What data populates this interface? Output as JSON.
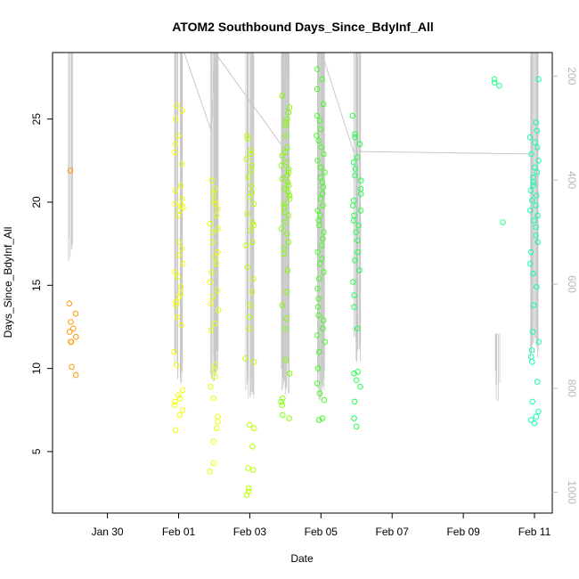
{
  "chart_data": {
    "type": "scatter",
    "title": "ATOM2 Southbound Days_Since_BdyInf_All",
    "xlabel": "Date",
    "ylabel": "Days_Since_BdyInf_All",
    "xlim": [
      "2015-01-28T11:00",
      "2015-02-11T12:00"
    ],
    "ylim": [
      1.3,
      29.0
    ],
    "y2lim": [
      1040,
      155
    ],
    "x_tick_labels": [
      {
        "date": "2015-01-30",
        "label": "Jan 30"
      },
      {
        "date": "2015-02-01",
        "label": "Feb 01"
      },
      {
        "date": "2015-02-03",
        "label": "Feb 03"
      },
      {
        "date": "2015-02-05",
        "label": "Feb 05"
      },
      {
        "date": "2015-02-07",
        "label": "Feb 07"
      },
      {
        "date": "2015-02-09",
        "label": "Feb 09"
      },
      {
        "date": "2015-02-11",
        "label": "Feb 11"
      }
    ],
    "y_ticks": [
      5,
      10,
      15,
      20,
      25
    ],
    "y2_ticks": [
      200,
      400,
      600,
      800,
      1000
    ],
    "grid": false,
    "legend": "none",
    "secondary_axis_color": "#b8b8b8",
    "line_color": "#c8c8c8",
    "clusters": [
      {
        "date": "2015-01-29T00:00",
        "color": "#ff9900",
        "values": [
          21.9,
          13.9,
          13.3,
          12.8,
          12.4,
          12.2,
          11.9,
          11.6,
          11.6,
          10.1,
          9.6
        ],
        "depth_range": [
          155,
          530
        ]
      },
      {
        "date": "2015-02-01T00:00",
        "color": "#f2ff00",
        "values": [
          25.8,
          25.5,
          25.0,
          24.0,
          23.5,
          23.0,
          22.3,
          21.0,
          20.7,
          20.2,
          19.9,
          19.8,
          19.7,
          19.5,
          19.2,
          17.6,
          17.2,
          16.8,
          16.3,
          15.8,
          15.5,
          14.9,
          14.5,
          14.3,
          14.0,
          13.8,
          13.1,
          12.6,
          11.0,
          10.2,
          8.7,
          8.4,
          8.2,
          8.0,
          7.8,
          7.5,
          7.2,
          6.3
        ],
        "depth_range": [
          155,
          760
        ]
      },
      {
        "date": "2015-02-02T00:00",
        "color": "#e8ff00",
        "values": [
          21.3,
          20.8,
          20.5,
          20.1,
          19.9,
          19.6,
          19.2,
          18.7,
          18.4,
          18.2,
          17.6,
          17.0,
          16.7,
          16.3,
          15.8,
          15.2,
          14.7,
          14.3,
          13.9,
          13.5,
          12.7,
          12.3,
          10.2,
          9.9,
          9.5,
          8.9,
          8.2,
          7.1,
          6.8,
          6.4,
          5.6,
          4.3,
          3.8
        ],
        "depth_range": [
          155,
          760
        ]
      },
      {
        "date": "2015-02-03T00:00",
        "color": "#b8ff00",
        "values": [
          24.0,
          23.8,
          23.1,
          22.9,
          22.6,
          22.2,
          21.9,
          21.5,
          21.0,
          20.6,
          20.3,
          19.9,
          19.3,
          18.8,
          18.6,
          18.3,
          17.6,
          17.4,
          16.1,
          15.4,
          14.6,
          13.8,
          13.1,
          12.4,
          10.6,
          10.4,
          6.6,
          6.4,
          5.3,
          4.0,
          3.9,
          2.8,
          2.6,
          2.4
        ],
        "depth_range": [
          155,
          790
        ]
      },
      {
        "date": "2015-02-04T00:00",
        "color": "#80ff00",
        "values": [
          26.4,
          25.7,
          25.4,
          25.0,
          24.8,
          24.6,
          24.0,
          23.3,
          23.0,
          22.8,
          22.4,
          22.2,
          22.0,
          21.8,
          21.6,
          21.4,
          21.2,
          21.0,
          20.8,
          20.6,
          20.4,
          20.2,
          19.9,
          19.7,
          19.4,
          19.2,
          18.8,
          18.4,
          18.1,
          17.6,
          17.2,
          16.9,
          15.9,
          14.6,
          13.8,
          13.0,
          12.4,
          10.5,
          9.7,
          8.2,
          8.0,
          7.8,
          7.2,
          7.0
        ],
        "depth_range": [
          155,
          780
        ]
      },
      {
        "date": "2015-02-05T00:00",
        "color": "#40ff20",
        "values": [
          28.0,
          27.4,
          26.8,
          25.9,
          25.2,
          24.9,
          24.4,
          24.0,
          23.7,
          23.3,
          22.9,
          22.5,
          22.1,
          21.8,
          21.5,
          21.2,
          20.9,
          20.5,
          20.2,
          19.8,
          19.5,
          19.2,
          18.9,
          18.6,
          18.2,
          17.8,
          17.4,
          17.0,
          16.6,
          16.3,
          15.8,
          15.4,
          14.8,
          14.2,
          13.7,
          13.2,
          12.9,
          12.4,
          12.0,
          11.6,
          11.0,
          10.0,
          9.1,
          8.5,
          8.1,
          7.0,
          6.9
        ],
        "depth_range": [
          155,
          790
        ]
      },
      {
        "date": "2015-02-06T00:00",
        "color": "#20ff50",
        "values": [
          25.2,
          24.1,
          23.9,
          23.5,
          22.7,
          22.4,
          22.0,
          21.6,
          21.3,
          20.8,
          20.5,
          20.1,
          19.8,
          19.5,
          19.2,
          18.9,
          18.6,
          18.2,
          17.7,
          17.0,
          16.5,
          15.9,
          15.2,
          14.4,
          13.7,
          12.4,
          9.8,
          9.7,
          9.3,
          8.9,
          8.0,
          7.0,
          6.5
        ],
        "depth_range": [
          155,
          720
        ]
      },
      {
        "date": "2015-02-10T00:00",
        "color": "#20ff80",
        "values": [
          27.4,
          27.2,
          27.0,
          18.8
        ],
        "depth_range": [
          695,
          795
        ]
      },
      {
        "date": "2015-02-11T00:00",
        "color": "#10ffaa",
        "values": [
          27.4,
          24.8,
          24.3,
          23.9,
          23.6,
          23.3,
          22.9,
          22.5,
          22.1,
          21.8,
          21.5,
          21.2,
          21.0,
          20.7,
          20.4,
          20.1,
          19.8,
          19.5,
          19.2,
          18.9,
          18.5,
          18.0,
          17.6,
          17.0,
          16.3,
          15.7,
          14.9,
          13.8,
          12.2,
          11.6,
          11.1,
          10.7,
          10.4,
          9.2,
          8.0,
          7.4,
          7.1,
          6.9,
          6.7
        ],
        "depth_range": [
          155,
          710
        ]
      }
    ],
    "track": [
      [
        "2015-01-28T12:00",
        150
      ],
      [
        "2015-01-31T23:30",
        120
      ],
      [
        "2015-02-01T22:00",
        305
      ],
      [
        "2015-02-02T00:30",
        155
      ],
      [
        "2015-02-03T22:00",
        335
      ],
      [
        "2015-02-04T00:30",
        155
      ],
      [
        "2015-02-05T00:30",
        155
      ],
      [
        "2015-02-05T22:00",
        345
      ],
      [
        "2015-02-11T00:00",
        350
      ]
    ]
  }
}
